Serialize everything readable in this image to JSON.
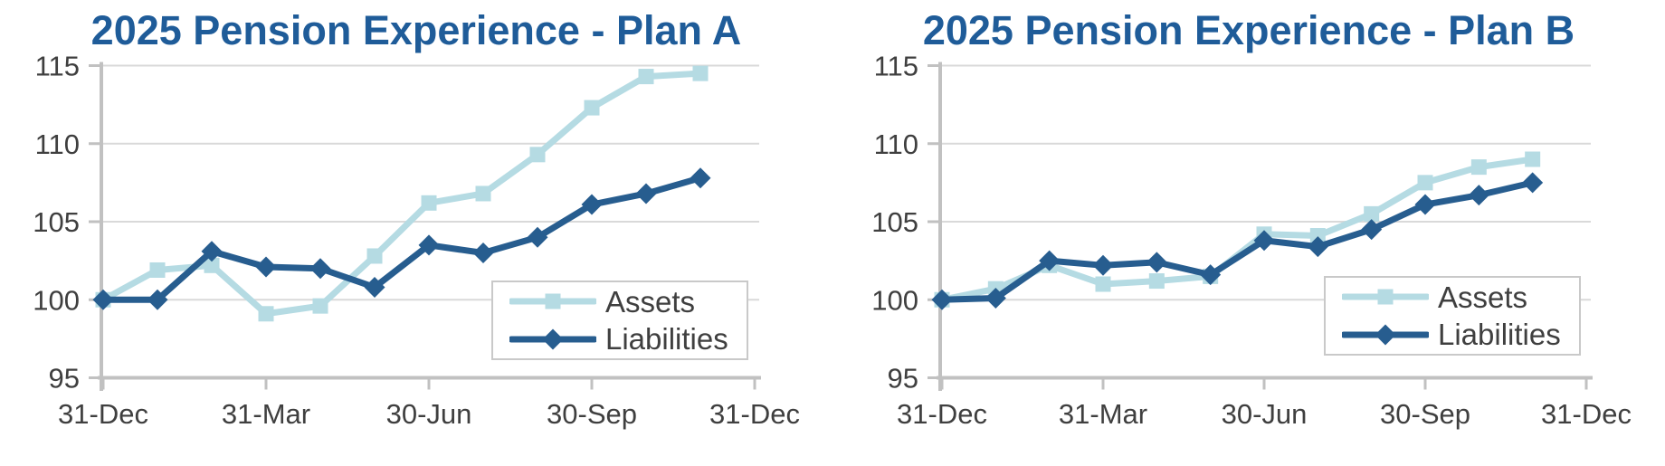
{
  "colors": {
    "title": "#1F5C99",
    "axis_text": "#3F3F3F",
    "axis_line": "#C1C1C1",
    "gridline": "#D9D9D9",
    "legend_border": "#C9C9C9",
    "background": "#FFFFFF",
    "assets": "#B5DBE3",
    "liabilities": "#275D8F"
  },
  "chart_data": [
    {
      "type": "line",
      "title": "2025 Pension Experience - Plan A",
      "grid": "horizontal",
      "legend_position": "inside-bottom-right",
      "x_axis": {
        "range_months": [
          0,
          12
        ],
        "tick_positions_months": [
          0,
          3,
          6,
          9,
          12
        ],
        "tick_labels": [
          "31-Dec",
          "31-Mar",
          "30-Jun",
          "30-Sep",
          "31-Dec"
        ]
      },
      "y_axis": {
        "range": [
          95,
          115
        ],
        "ticks": [
          95,
          100,
          105,
          110,
          115
        ]
      },
      "series": [
        {
          "name": "Assets",
          "marker": "square",
          "color": "#B5DBE3",
          "values": [
            100.0,
            101.9,
            102.2,
            99.1,
            99.6,
            102.8,
            106.2,
            106.8,
            109.3,
            112.3,
            114.3,
            114.5
          ]
        },
        {
          "name": "Liabilities",
          "marker": "diamond",
          "color": "#275D8F",
          "values": [
            100.0,
            100.0,
            103.1,
            102.1,
            102.0,
            100.8,
            103.5,
            103.0,
            104.0,
            106.1,
            106.8,
            107.8
          ]
        }
      ]
    },
    {
      "type": "line",
      "title": "2025 Pension Experience - Plan B",
      "grid": "horizontal",
      "legend_position": "inside-bottom-right",
      "x_axis": {
        "range_months": [
          0,
          12
        ],
        "tick_positions_months": [
          0,
          3,
          6,
          9,
          12
        ],
        "tick_labels": [
          "31-Dec",
          "31-Mar",
          "30-Jun",
          "30-Sep",
          "31-Dec"
        ]
      },
      "y_axis": {
        "range": [
          95,
          115
        ],
        "ticks": [
          95,
          100,
          105,
          110,
          115
        ]
      },
      "series": [
        {
          "name": "Assets",
          "marker": "square",
          "color": "#B5DBE3",
          "values": [
            100.0,
            100.7,
            102.2,
            101.0,
            101.2,
            101.5,
            104.2,
            104.1,
            105.5,
            107.5,
            108.5,
            109.0
          ]
        },
        {
          "name": "Liabilities",
          "marker": "diamond",
          "color": "#275D8F",
          "values": [
            100.0,
            100.1,
            102.5,
            102.2,
            102.4,
            101.6,
            103.8,
            103.4,
            104.5,
            106.1,
            106.7,
            107.5
          ]
        }
      ]
    }
  ]
}
